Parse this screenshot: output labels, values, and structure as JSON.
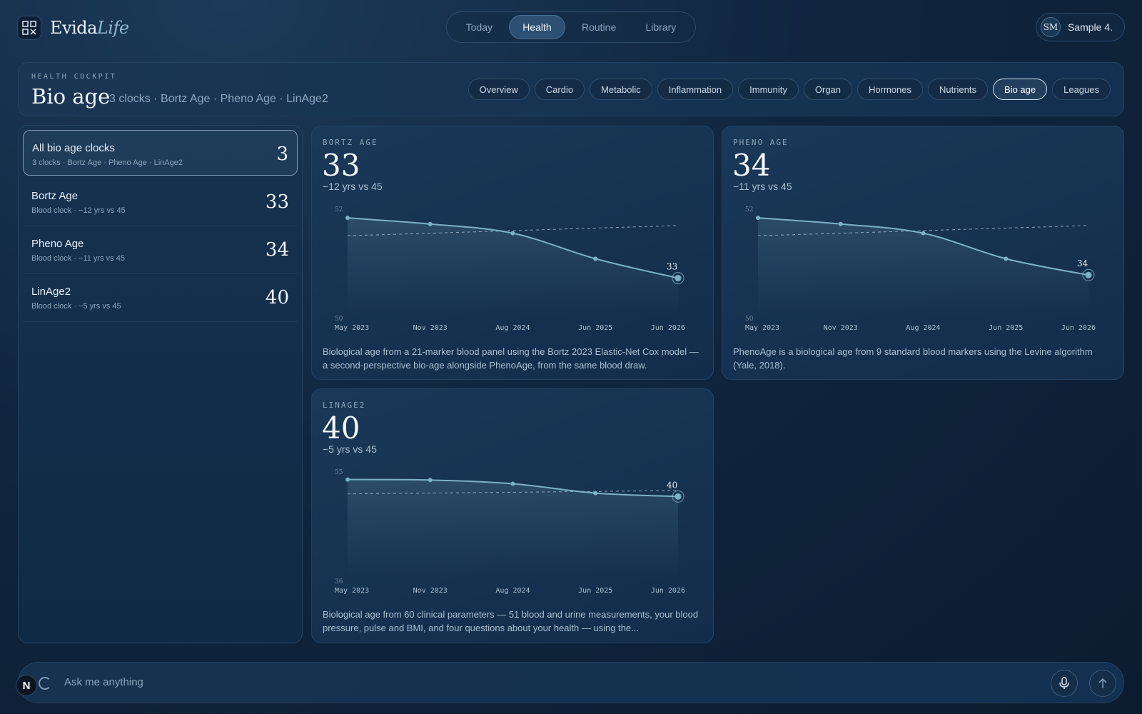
{
  "app": {
    "name_main": "Evida",
    "name_italic": "Life"
  },
  "nav": {
    "items": [
      "Today",
      "Health",
      "Routine",
      "Library"
    ],
    "active": "Health"
  },
  "user": {
    "initials": "SM",
    "name": "Sample 4."
  },
  "header": {
    "eyebrow": "HEALTH COCKPIT",
    "title": "Bio age",
    "subtitle": "3 clocks · Bortz Age · Pheno Age · LinAge2",
    "tabs": [
      "Overview",
      "Cardio",
      "Metabolic",
      "Inflammation",
      "Immunity",
      "Organ",
      "Hormones",
      "Nutrients",
      "Bio age",
      "Leagues"
    ],
    "active_tab": "Bio age"
  },
  "clock_list": [
    {
      "name": "All bio age clocks",
      "meta": "3 clocks · Bortz Age · Pheno Age · LinAge2",
      "value": "3"
    },
    {
      "name": "Bortz Age",
      "meta": "Blood clock · −12 yrs vs 45",
      "value": "33"
    },
    {
      "name": "Pheno Age",
      "meta": "Blood clock · −11 yrs vs 45",
      "value": "34"
    },
    {
      "name": "LinAge2",
      "meta": "Blood clock · −5 yrs vs 45",
      "value": "40"
    }
  ],
  "cards": [
    {
      "eyebrow": "BORTZ AGE",
      "value": "33",
      "delta": "−12 yrs vs 45",
      "description": "Biological age from a 21-marker blood panel using the Bortz 2023 Elastic-Net Cox model — a second-perspective bio-age alongside PhenoAge, from the same blood draw."
    },
    {
      "eyebrow": "PHENO AGE",
      "value": "34",
      "delta": "−11 yrs vs 45",
      "description": "PhenoAge is a biological age from 9 standard blood markers using the Levine algorithm (Yale, 2018)."
    },
    {
      "eyebrow": "LINAGE2",
      "value": "40",
      "delta": "−5 yrs vs 45",
      "description": "Biological age from 60 clinical parameters — 51 blood and urine measurements, your blood pressure, pulse and BMI, and four questions about your health — using the..."
    }
  ],
  "chart_data": [
    {
      "type": "line",
      "x": [
        "May 2023",
        "Nov 2023",
        "Aug 2024",
        "Jun 2025",
        "Jun 2026"
      ],
      "series": [
        {
          "values": [
            51.9,
            51.78,
            51.6,
            51.1,
            50.72
          ]
        }
      ],
      "trend_start": 51.55,
      "trend_end": 51.75,
      "ylim": [
        50,
        52
      ],
      "ytick_labels": [
        "52",
        "50"
      ],
      "end_label": "33",
      "grid": false
    },
    {
      "type": "line",
      "x": [
        "May 2023",
        "Nov 2023",
        "Aug 2024",
        "Jun 2025",
        "Jun 2026"
      ],
      "series": [
        {
          "values": [
            51.9,
            51.78,
            51.6,
            51.1,
            50.78
          ]
        }
      ],
      "trend_start": 51.55,
      "trend_end": 51.75,
      "ylim": [
        50,
        52
      ],
      "ytick_labels": [
        "52",
        "50"
      ],
      "end_label": "34",
      "grid": false
    },
    {
      "type": "line",
      "x": [
        "May 2023",
        "Nov 2023",
        "Aug 2024",
        "Jun 2025",
        "Jun 2026"
      ],
      "series": [
        {
          "values": [
            54.25,
            54.16,
            53.47,
            51.73,
            51.1
          ]
        }
      ],
      "trend_start": 51.58,
      "trend_end": 52.2,
      "ylim": [
        36,
        55
      ],
      "ytick_labels": [
        "55",
        "36"
      ],
      "end_label": "40",
      "grid": false
    }
  ],
  "ask": {
    "placeholder": "Ask me anything"
  },
  "badge": {
    "letter": "N"
  },
  "colors": {
    "accent": "#7fb0c8",
    "background": "#10263f",
    "active_border": "#cfe0ee"
  },
  "icons": {
    "logo": "logo-icon",
    "mic": "mic-icon",
    "send": "arrow-up-icon",
    "spinner": "loading-icon"
  }
}
